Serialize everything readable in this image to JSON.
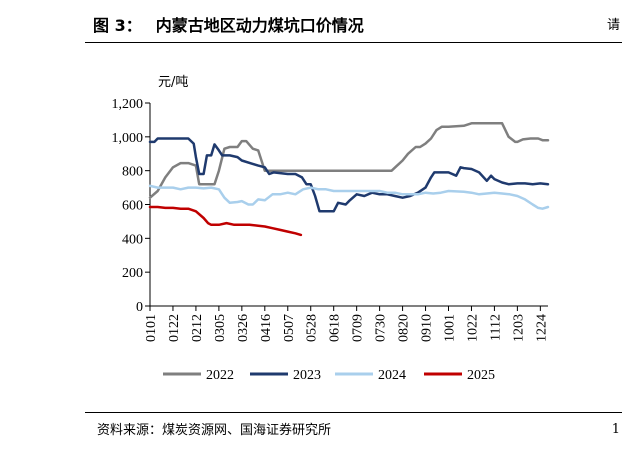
{
  "figure": {
    "label": "图 3：",
    "title": "内蒙古地区动力煤坑口价情况",
    "source": "资料来源：煤炭资源网、国海证券研究所",
    "edge_glyph": "请",
    "edge_glyph_bottom": "1"
  },
  "chart_data": {
    "type": "line",
    "title": "内蒙古地区动力煤坑口价情况",
    "ylabel": "元/吨",
    "xlabel": "",
    "ylim": [
      0,
      1200
    ],
    "yticks": [
      0,
      200,
      400,
      600,
      800,
      1000,
      1200
    ],
    "ytick_labels": [
      "0",
      "200",
      "400",
      "600",
      "800",
      "1,000",
      "1,200"
    ],
    "xticks": [
      "0101",
      "0122",
      "0212",
      "0305",
      "0326",
      "0416",
      "0507",
      "0528",
      "0618",
      "0709",
      "0730",
      "0820",
      "0910",
      "1001",
      "1022",
      "1112",
      "1203",
      "1224"
    ],
    "x_domain": [
      "0101",
      "1231"
    ],
    "legend": [
      "2022",
      "2023",
      "2024",
      "2025"
    ],
    "legend_position": "bottom",
    "grid": false,
    "series": [
      {
        "name": "2022",
        "color": "#7f7f7f",
        "points": [
          [
            "0101",
            640
          ],
          [
            "0108",
            680
          ],
          [
            "0115",
            760
          ],
          [
            "0122",
            820
          ],
          [
            "0129",
            845
          ],
          [
            "0205",
            845
          ],
          [
            "0212",
            830
          ],
          [
            "0215",
            720
          ],
          [
            "0222",
            720
          ],
          [
            "0301",
            720
          ],
          [
            "0305",
            800
          ],
          [
            "0310",
            930
          ],
          [
            "0315",
            940
          ],
          [
            "0322",
            940
          ],
          [
            "0326",
            975
          ],
          [
            "0330",
            975
          ],
          [
            "0405",
            930
          ],
          [
            "0410",
            920
          ],
          [
            "0416",
            800
          ],
          [
            "0507",
            800
          ],
          [
            "0528",
            800
          ],
          [
            "0618",
            800
          ],
          [
            "0709",
            800
          ],
          [
            "0730",
            800
          ],
          [
            "0810",
            800
          ],
          [
            "0815",
            830
          ],
          [
            "0820",
            860
          ],
          [
            "0825",
            900
          ],
          [
            "0901",
            940
          ],
          [
            "0905",
            940
          ],
          [
            "0910",
            960
          ],
          [
            "0915",
            990
          ],
          [
            "0920",
            1040
          ],
          [
            "0925",
            1060
          ],
          [
            "1001",
            1060
          ],
          [
            "1015",
            1065
          ],
          [
            "1022",
            1080
          ],
          [
            "1112",
            1080
          ],
          [
            "1119",
            1080
          ],
          [
            "1125",
            1000
          ],
          [
            "1201",
            970
          ],
          [
            "1203",
            970
          ],
          [
            "1208",
            985
          ],
          [
            "1215",
            990
          ],
          [
            "1222",
            990
          ],
          [
            "1226",
            980
          ],
          [
            "1231",
            980
          ]
        ]
      },
      {
        "name": "2023",
        "color": "#1f3a6e",
        "points": [
          [
            "0101",
            970
          ],
          [
            "0105",
            970
          ],
          [
            "0108",
            990
          ],
          [
            "0122",
            990
          ],
          [
            "0205",
            990
          ],
          [
            "0210",
            960
          ],
          [
            "0212",
            880
          ],
          [
            "0215",
            780
          ],
          [
            "0219",
            780
          ],
          [
            "0222",
            890
          ],
          [
            "0226",
            890
          ],
          [
            "0301",
            955
          ],
          [
            "0305",
            920
          ],
          [
            "0308",
            890
          ],
          [
            "0315",
            890
          ],
          [
            "0322",
            880
          ],
          [
            "0326",
            860
          ],
          [
            "0405",
            840
          ],
          [
            "0410",
            830
          ],
          [
            "0416",
            820
          ],
          [
            "0420",
            780
          ],
          [
            "0424",
            790
          ],
          [
            "0507",
            780
          ],
          [
            "0514",
            780
          ],
          [
            "0520",
            760
          ],
          [
            "0524",
            720
          ],
          [
            "0528",
            720
          ],
          [
            "0601",
            650
          ],
          [
            "0605",
            560
          ],
          [
            "0612",
            560
          ],
          [
            "0618",
            560
          ],
          [
            "0622",
            610
          ],
          [
            "0629",
            600
          ],
          [
            "0702",
            620
          ],
          [
            "0709",
            660
          ],
          [
            "0716",
            650
          ],
          [
            "0723",
            670
          ],
          [
            "0730",
            660
          ],
          [
            "0806",
            660
          ],
          [
            "0813",
            650
          ],
          [
            "0820",
            640
          ],
          [
            "0827",
            650
          ],
          [
            "0903",
            670
          ],
          [
            "0910",
            700
          ],
          [
            "0915",
            760
          ],
          [
            "0918",
            790
          ],
          [
            "0924",
            790
          ],
          [
            "1001",
            790
          ],
          [
            "1008",
            770
          ],
          [
            "1012",
            820
          ],
          [
            "1015",
            815
          ],
          [
            "1022",
            810
          ],
          [
            "1029",
            790
          ],
          [
            "1105",
            740
          ],
          [
            "1109",
            770
          ],
          [
            "1112",
            750
          ],
          [
            "1119",
            730
          ],
          [
            "1125",
            720
          ],
          [
            "1203",
            725
          ],
          [
            "1210",
            725
          ],
          [
            "1217",
            720
          ],
          [
            "1224",
            725
          ],
          [
            "1231",
            720
          ]
        ]
      },
      {
        "name": "2024",
        "color": "#a9cfec",
        "points": [
          [
            "0101",
            710
          ],
          [
            "0108",
            700
          ],
          [
            "0115",
            700
          ],
          [
            "0122",
            700
          ],
          [
            "0129",
            690
          ],
          [
            "0205",
            700
          ],
          [
            "0212",
            700
          ],
          [
            "0219",
            695
          ],
          [
            "0226",
            700
          ],
          [
            "0305",
            690
          ],
          [
            "0310",
            640
          ],
          [
            "0315",
            610
          ],
          [
            "0322",
            615
          ],
          [
            "0326",
            620
          ],
          [
            "0401",
            600
          ],
          [
            "0405",
            600
          ],
          [
            "0410",
            630
          ],
          [
            "0416",
            625
          ],
          [
            "0423",
            660
          ],
          [
            "0430",
            660
          ],
          [
            "0507",
            670
          ],
          [
            "0514",
            660
          ],
          [
            "0521",
            690
          ],
          [
            "0528",
            700
          ],
          [
            "0604",
            690
          ],
          [
            "0611",
            690
          ],
          [
            "0618",
            680
          ],
          [
            "0625",
            680
          ],
          [
            "0702",
            680
          ],
          [
            "0709",
            680
          ],
          [
            "0716",
            680
          ],
          [
            "0723",
            680
          ],
          [
            "0730",
            680
          ],
          [
            "0806",
            670
          ],
          [
            "0813",
            670
          ],
          [
            "0820",
            660
          ],
          [
            "0827",
            660
          ],
          [
            "0903",
            660
          ],
          [
            "0910",
            670
          ],
          [
            "0917",
            665
          ],
          [
            "0924",
            670
          ],
          [
            "1001",
            680
          ],
          [
            "1015",
            675
          ],
          [
            "1022",
            670
          ],
          [
            "1029",
            660
          ],
          [
            "1105",
            665
          ],
          [
            "1112",
            670
          ],
          [
            "1119",
            665
          ],
          [
            "1126",
            660
          ],
          [
            "1203",
            650
          ],
          [
            "1210",
            630
          ],
          [
            "1217",
            600
          ],
          [
            "1222",
            580
          ],
          [
            "1226",
            575
          ],
          [
            "1231",
            585
          ]
        ]
      },
      {
        "name": "2025",
        "color": "#c00000",
        "points": [
          [
            "0101",
            585
          ],
          [
            "0108",
            585
          ],
          [
            "0115",
            580
          ],
          [
            "0122",
            580
          ],
          [
            "0129",
            575
          ],
          [
            "0205",
            575
          ],
          [
            "0212",
            560
          ],
          [
            "0219",
            520
          ],
          [
            "0223",
            490
          ],
          [
            "0226",
            480
          ],
          [
            "0305",
            480
          ],
          [
            "0312",
            490
          ],
          [
            "0319",
            480
          ],
          [
            "0326",
            480
          ],
          [
            "0402",
            480
          ],
          [
            "0409",
            475
          ],
          [
            "0416",
            470
          ],
          [
            "0423",
            460
          ],
          [
            "0430",
            450
          ],
          [
            "0507",
            440
          ],
          [
            "0514",
            430
          ],
          [
            "0519",
            420
          ]
        ]
      }
    ]
  }
}
